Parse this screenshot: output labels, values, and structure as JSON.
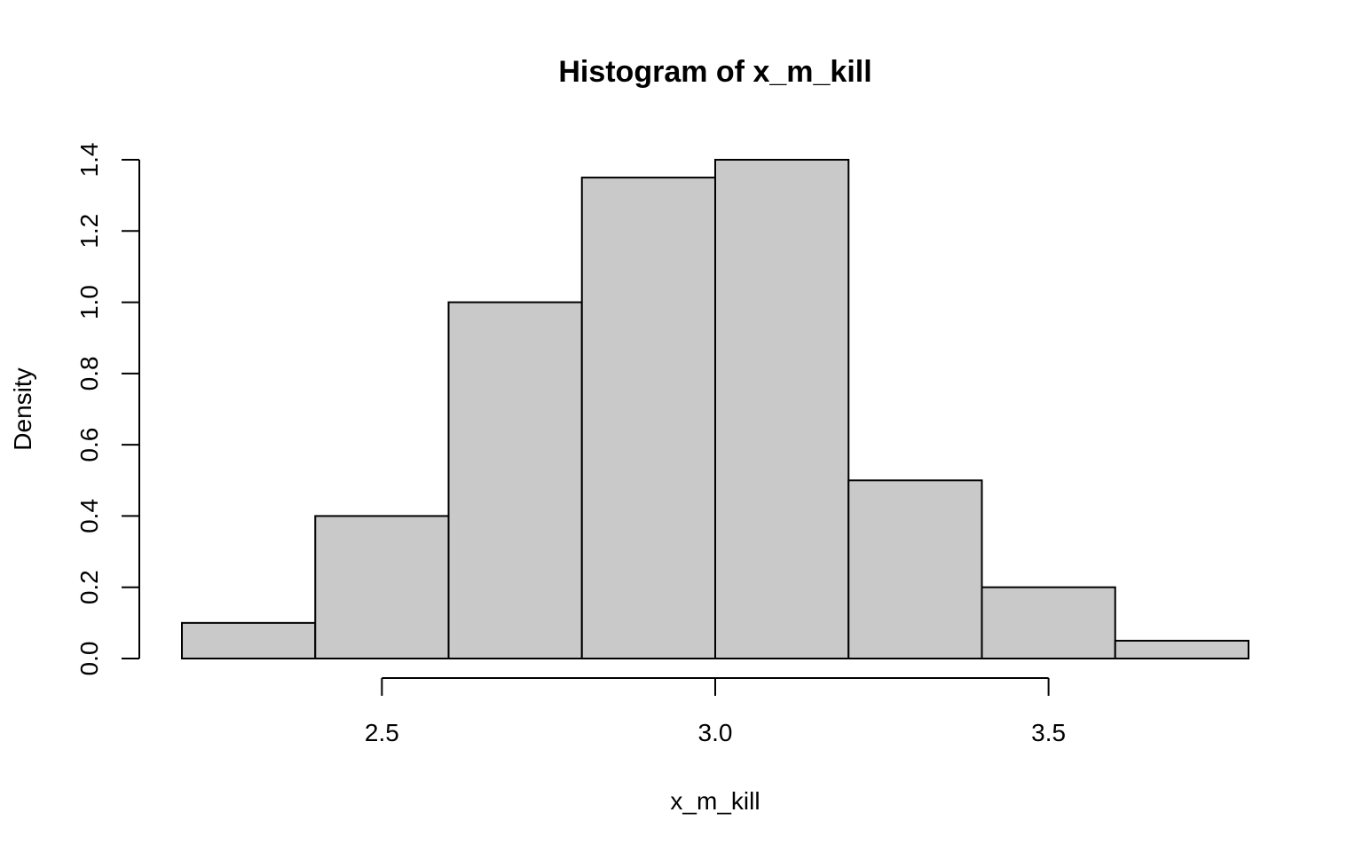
{
  "chart_data": {
    "type": "bar",
    "title": "Histogram of x_m_kill",
    "xlabel": "x_m_kill",
    "ylabel": "Density",
    "bin_edges": [
      2.2,
      2.4,
      2.6,
      2.8,
      3.0,
      3.2,
      3.4,
      3.6,
      3.8
    ],
    "values": [
      0.1,
      0.4,
      1.0,
      1.35,
      1.4,
      0.5,
      0.2,
      0.05
    ],
    "xlim": [
      2.2,
      3.8
    ],
    "ylim": [
      0,
      1.4
    ],
    "x_ticks": [
      2.5,
      3.0,
      3.5
    ],
    "x_tick_labels": [
      "2.5",
      "3.0",
      "3.5"
    ],
    "y_ticks": [
      0,
      0.2,
      0.4,
      0.6,
      0.8,
      1.0,
      1.2,
      1.4
    ],
    "y_tick_labels": [
      "0.0",
      "0.2",
      "0.4",
      "0.6",
      "0.8",
      "1.0",
      "1.2",
      "1.4"
    ],
    "bar_fill": "#c9c9c9",
    "bar_stroke": "#000000",
    "grid": false
  }
}
